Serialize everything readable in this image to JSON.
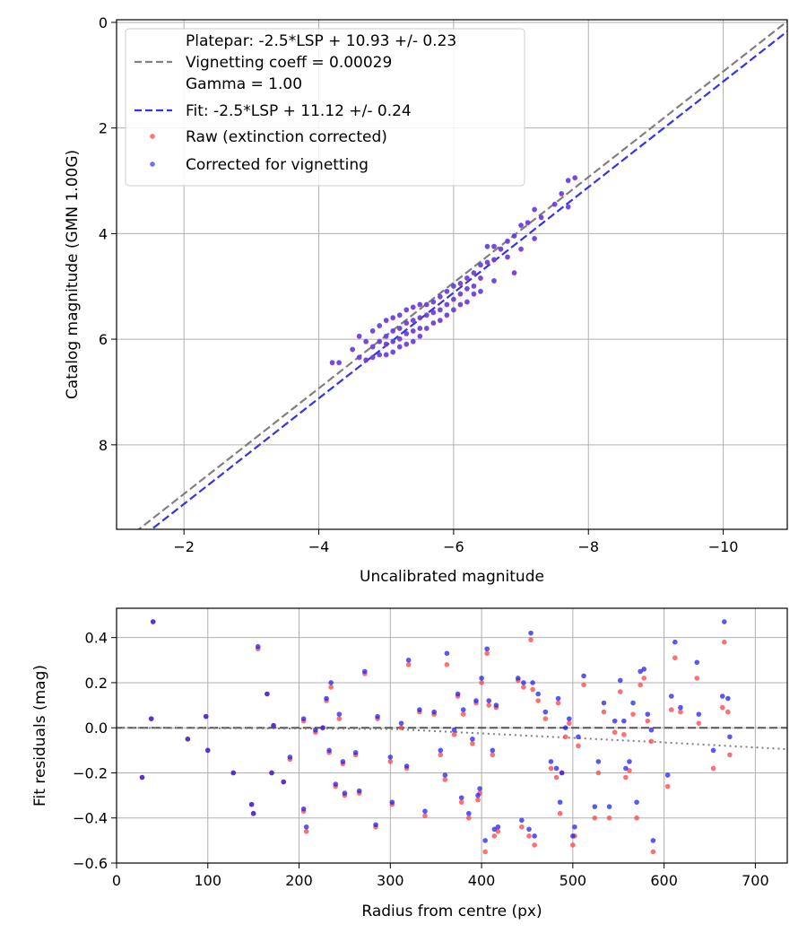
{
  "chart_data": [
    {
      "type": "scatter",
      "xlabel": "Uncalibrated magnitude",
      "ylabel": "Catalog magnitude (GMN 1.00G)",
      "xlim": [
        -1.0,
        -10.95
      ],
      "ylim": [
        9.6,
        -0.05
      ],
      "x_ticks": [
        -2,
        -4,
        -6,
        -8,
        -10
      ],
      "x_tick_labels": [
        "−2",
        "−4",
        "−6",
        "−8",
        "−10"
      ],
      "y_ticks": [
        0,
        2,
        4,
        6,
        8
      ],
      "y_tick_labels": [
        "0",
        "2",
        "4",
        "6",
        "8"
      ],
      "grid": true,
      "legend_position": "top-left",
      "legend": [
        {
          "text": "Platepar: -2.5*LSP + 10.93 +/- 0.23",
          "marker": "none"
        },
        {
          "text": "Vignetting coeff = 0.00029",
          "marker": "dash",
          "color": "#808080"
        },
        {
          "text": "Gamma = 1.00",
          "marker": "none"
        },
        {
          "text": "Fit: -2.5*LSP + 11.12 +/- 0.24",
          "marker": "dash",
          "color": "#3333ee"
        },
        {
          "text": "Raw (extinction corrected)",
          "marker": "dot",
          "color": "#ff4040"
        },
        {
          "text": "Corrected for vignetting",
          "marker": "dot",
          "color": "#4040ff"
        }
      ],
      "lines": [
        {
          "name": "Platepar",
          "slope": -2.5,
          "intercept": 10.93,
          "color": "#808080"
        },
        {
          "name": "Fit",
          "slope": -2.5,
          "intercept": 11.12,
          "color": "#3333ee"
        }
      ],
      "series": [
        {
          "name": "Raw (extinction corrected)",
          "color": "#ff4040",
          "x": [
            -4.2,
            -4.3,
            -4.5,
            -4.6,
            -4.6,
            -4.7,
            -4.7,
            -4.8,
            -4.8,
            -4.8,
            -4.9,
            -4.9,
            -4.9,
            -5.0,
            -5.0,
            -5.0,
            -5.0,
            -5.1,
            -5.1,
            -5.1,
            -5.1,
            -5.2,
            -5.2,
            -5.2,
            -5.2,
            -5.3,
            -5.3,
            -5.3,
            -5.3,
            -5.4,
            -5.4,
            -5.4,
            -5.4,
            -5.5,
            -5.5,
            -5.5,
            -5.5,
            -5.6,
            -5.6,
            -5.6,
            -5.7,
            -5.7,
            -5.7,
            -5.8,
            -5.8,
            -5.8,
            -5.9,
            -5.9,
            -5.9,
            -6.0,
            -6.0,
            -6.0,
            -6.1,
            -6.1,
            -6.1,
            -6.2,
            -6.2,
            -6.2,
            -6.3,
            -6.3,
            -6.3,
            -6.4,
            -6.4,
            -6.4,
            -6.5,
            -6.5,
            -6.6,
            -6.6,
            -6.6,
            -6.7,
            -6.8,
            -6.8,
            -6.9,
            -6.9,
            -7.0,
            -7.0,
            -7.1,
            -7.2,
            -7.2,
            -7.3,
            -7.5,
            -7.6,
            -7.7,
            -7.7,
            -7.8
          ],
          "y": [
            6.45,
            6.45,
            6.2,
            6.35,
            5.95,
            6.05,
            6.4,
            5.85,
            6.15,
            6.35,
            5.75,
            6.05,
            6.3,
            5.65,
            5.95,
            6.1,
            6.3,
            5.6,
            5.85,
            6.05,
            6.25,
            5.55,
            5.8,
            6.0,
            6.15,
            5.45,
            5.7,
            5.9,
            6.1,
            5.4,
            5.65,
            5.85,
            6.05,
            5.35,
            5.6,
            5.8,
            5.95,
            5.35,
            5.55,
            5.8,
            5.3,
            5.5,
            5.7,
            5.2,
            5.45,
            5.65,
            5.1,
            5.35,
            5.55,
            5.0,
            5.25,
            5.45,
            4.95,
            5.15,
            5.35,
            4.85,
            5.05,
            5.3,
            4.75,
            5.0,
            5.15,
            4.6,
            4.85,
            5.1,
            4.25,
            4.55,
            4.25,
            4.5,
            4.9,
            4.3,
            4.15,
            4.45,
            4.05,
            4.75,
            3.85,
            4.3,
            3.8,
            3.55,
            4.1,
            3.7,
            3.45,
            3.25,
            3.0,
            3.5,
            2.95
          ]
        },
        {
          "name": "Corrected for vignetting",
          "color": "#4040ff",
          "x": [
            -4.2,
            -4.3,
            -4.5,
            -4.6,
            -4.6,
            -4.7,
            -4.7,
            -4.8,
            -4.8,
            -4.8,
            -4.9,
            -4.9,
            -4.9,
            -5.0,
            -5.0,
            -5.0,
            -5.0,
            -5.1,
            -5.1,
            -5.1,
            -5.1,
            -5.2,
            -5.2,
            -5.2,
            -5.2,
            -5.3,
            -5.3,
            -5.3,
            -5.3,
            -5.4,
            -5.4,
            -5.4,
            -5.4,
            -5.5,
            -5.5,
            -5.5,
            -5.5,
            -5.6,
            -5.6,
            -5.6,
            -5.7,
            -5.7,
            -5.7,
            -5.8,
            -5.8,
            -5.8,
            -5.9,
            -5.9,
            -5.9,
            -6.0,
            -6.0,
            -6.0,
            -6.1,
            -6.1,
            -6.1,
            -6.2,
            -6.2,
            -6.2,
            -6.3,
            -6.3,
            -6.3,
            -6.4,
            -6.4,
            -6.4,
            -6.5,
            -6.5,
            -6.6,
            -6.6,
            -6.6,
            -6.7,
            -6.8,
            -6.8,
            -6.9,
            -6.9,
            -7.0,
            -7.0,
            -7.1,
            -7.2,
            -7.2,
            -7.3,
            -7.5,
            -7.6,
            -7.7,
            -7.7,
            -7.8
          ],
          "y": [
            6.44,
            6.44,
            6.19,
            6.34,
            5.94,
            6.04,
            6.39,
            5.84,
            6.14,
            6.34,
            5.74,
            6.04,
            6.29,
            5.64,
            5.94,
            6.09,
            6.29,
            5.59,
            5.84,
            6.04,
            6.24,
            5.54,
            5.79,
            5.99,
            6.14,
            5.44,
            5.69,
            5.89,
            6.09,
            5.39,
            5.64,
            5.84,
            6.04,
            5.34,
            5.59,
            5.79,
            5.94,
            5.34,
            5.54,
            5.79,
            5.29,
            5.49,
            5.69,
            5.19,
            5.44,
            5.64,
            5.09,
            5.34,
            5.54,
            4.99,
            5.24,
            5.44,
            4.94,
            5.14,
            5.34,
            4.84,
            5.04,
            5.29,
            4.74,
            4.99,
            5.14,
            4.59,
            4.84,
            5.09,
            4.24,
            4.54,
            4.24,
            4.49,
            4.89,
            4.29,
            4.14,
            4.44,
            4.04,
            4.74,
            3.84,
            4.29,
            3.79,
            3.54,
            4.09,
            3.69,
            3.44,
            3.24,
            2.99,
            3.49,
            2.94
          ]
        }
      ]
    },
    {
      "type": "scatter",
      "xlabel": "Radius from centre (px)",
      "ylabel": "Fit residuals (mag)",
      "xlim": [
        0,
        735
      ],
      "ylim": [
        -0.6,
        0.53
      ],
      "x_ticks": [
        0,
        100,
        200,
        300,
        400,
        500,
        600,
        700
      ],
      "x_tick_labels": [
        "0",
        "100",
        "200",
        "300",
        "400",
        "500",
        "600",
        "700"
      ],
      "y_ticks": [
        -0.6,
        -0.4,
        -0.2,
        0.0,
        0.2,
        0.4
      ],
      "y_tick_labels": [
        "−0.6",
        "−0.4",
        "−0.2",
        "0.0",
        "0.2",
        "0.4"
      ],
      "grid": true,
      "lines": [
        {
          "name": "zero",
          "style": "dashed",
          "color": "#555555",
          "x": [
            0,
            735
          ],
          "y": [
            0,
            0
          ]
        },
        {
          "name": "vignetting",
          "style": "dotted",
          "color": "#808080",
          "x": [
            0,
            300,
            400,
            500,
            600,
            735
          ],
          "y": [
            0,
            -0.005,
            -0.025,
            -0.045,
            -0.065,
            -0.095
          ]
        }
      ],
      "series": [
        {
          "name": "Raw",
          "color": "#ff4040",
          "x": [
            28,
            38,
            40,
            78,
            98,
            100,
            128,
            148,
            150,
            155,
            165,
            170,
            172,
            183,
            190,
            205,
            205,
            208,
            218,
            226,
            230,
            233,
            235,
            240,
            244,
            248,
            250,
            262,
            266,
            272,
            284,
            286,
            300,
            302,
            312,
            318,
            320,
            332,
            338,
            348,
            355,
            360,
            362,
            370,
            374,
            378,
            380,
            386,
            390,
            394,
            396,
            398,
            400,
            404,
            406,
            408,
            412,
            414,
            416,
            418,
            440,
            444,
            446,
            452,
            454,
            456,
            458,
            462,
            470,
            476,
            482,
            484,
            486,
            488,
            492,
            496,
            500,
            502,
            506,
            512,
            524,
            528,
            534,
            540,
            546,
            552,
            556,
            558,
            562,
            566,
            570,
            574,
            578,
            582,
            586,
            588,
            604,
            608,
            612,
            618,
            636,
            638,
            654,
            664,
            666,
            670,
            672
          ],
          "y": [
            -0.22,
            0.04,
            0.47,
            -0.05,
            0.05,
            -0.1,
            -0.2,
            -0.34,
            -0.38,
            0.35,
            0.15,
            -0.2,
            0.01,
            -0.24,
            -0.14,
            0.03,
            -0.37,
            -0.46,
            -0.02,
            0.0,
            0.12,
            -0.11,
            0.18,
            -0.26,
            0.04,
            -0.16,
            -0.3,
            -0.12,
            -0.29,
            0.24,
            -0.44,
            0.04,
            -0.15,
            -0.34,
            0.0,
            -0.18,
            0.28,
            0.07,
            -0.39,
            0.06,
            -0.12,
            -0.23,
            0.28,
            -0.03,
            0.14,
            -0.33,
            0.06,
            -0.4,
            -0.07,
            0.11,
            -0.32,
            -0.29,
            0.2,
            -0.55,
            0.33,
            0.1,
            -0.12,
            -0.48,
            0.09,
            -0.46,
            0.21,
            -0.44,
            0.18,
            -0.48,
            0.39,
            0.17,
            -0.52,
            0.12,
            0.04,
            -0.18,
            -0.22,
            0.11,
            -0.38,
            -0.2,
            -0.04,
            0.02,
            -0.52,
            -0.48,
            -0.08,
            0.19,
            -0.4,
            -0.2,
            0.07,
            -0.4,
            -0.02,
            0.16,
            -0.03,
            -0.22,
            -0.19,
            0.06,
            -0.4,
            0.19,
            0.22,
            0.03,
            -0.06,
            -0.55,
            -0.26,
            0.08,
            0.31,
            0.07,
            0.22,
            0.02,
            -0.18,
            0.09,
            0.38,
            0.07,
            -0.12
          ]
        },
        {
          "name": "Corrected",
          "color": "#2020ee",
          "x": [
            28,
            38,
            40,
            78,
            98,
            100,
            128,
            148,
            150,
            155,
            165,
            170,
            172,
            183,
            190,
            205,
            205,
            208,
            218,
            226,
            230,
            233,
            235,
            240,
            244,
            248,
            250,
            262,
            266,
            272,
            284,
            286,
            300,
            302,
            312,
            318,
            320,
            332,
            338,
            348,
            355,
            360,
            362,
            370,
            374,
            378,
            380,
            386,
            390,
            394,
            396,
            398,
            400,
            404,
            406,
            408,
            412,
            414,
            416,
            418,
            440,
            444,
            446,
            452,
            454,
            456,
            458,
            462,
            470,
            476,
            482,
            484,
            486,
            488,
            492,
            496,
            500,
            502,
            506,
            512,
            524,
            528,
            534,
            540,
            546,
            552,
            556,
            558,
            562,
            566,
            570,
            574,
            578,
            582,
            586,
            588,
            604,
            608,
            612,
            618,
            636,
            638,
            654,
            664,
            666,
            670,
            672
          ],
          "y": [
            -0.22,
            0.04,
            0.47,
            -0.05,
            0.05,
            -0.1,
            -0.2,
            -0.34,
            -0.38,
            0.36,
            0.15,
            -0.2,
            0.01,
            -0.24,
            -0.13,
            0.04,
            -0.36,
            -0.44,
            -0.01,
            0.0,
            0.13,
            -0.1,
            0.2,
            -0.25,
            0.06,
            -0.15,
            -0.29,
            -0.11,
            -0.28,
            0.25,
            -0.43,
            0.05,
            -0.13,
            -0.33,
            0.02,
            -0.17,
            0.3,
            0.08,
            -0.37,
            0.07,
            -0.1,
            -0.21,
            0.33,
            -0.01,
            0.15,
            -0.31,
            0.08,
            -0.38,
            -0.05,
            0.12,
            -0.3,
            -0.27,
            0.22,
            -0.5,
            0.35,
            0.12,
            -0.1,
            -0.45,
            0.1,
            -0.44,
            0.22,
            -0.41,
            0.2,
            -0.45,
            0.42,
            0.2,
            -0.48,
            0.15,
            0.07,
            -0.15,
            -0.18,
            0.13,
            -0.33,
            -0.2,
            0.0,
            0.04,
            -0.48,
            -0.44,
            -0.04,
            0.23,
            -0.35,
            -0.15,
            0.11,
            -0.35,
            0.03,
            0.21,
            0.03,
            -0.18,
            -0.15,
            0.11,
            -0.33,
            0.25,
            0.26,
            0.06,
            -0.01,
            -0.5,
            -0.21,
            0.14,
            0.38,
            0.09,
            0.29,
            0.06,
            -0.1,
            0.14,
            0.47,
            0.13,
            -0.04
          ]
        }
      ]
    }
  ]
}
